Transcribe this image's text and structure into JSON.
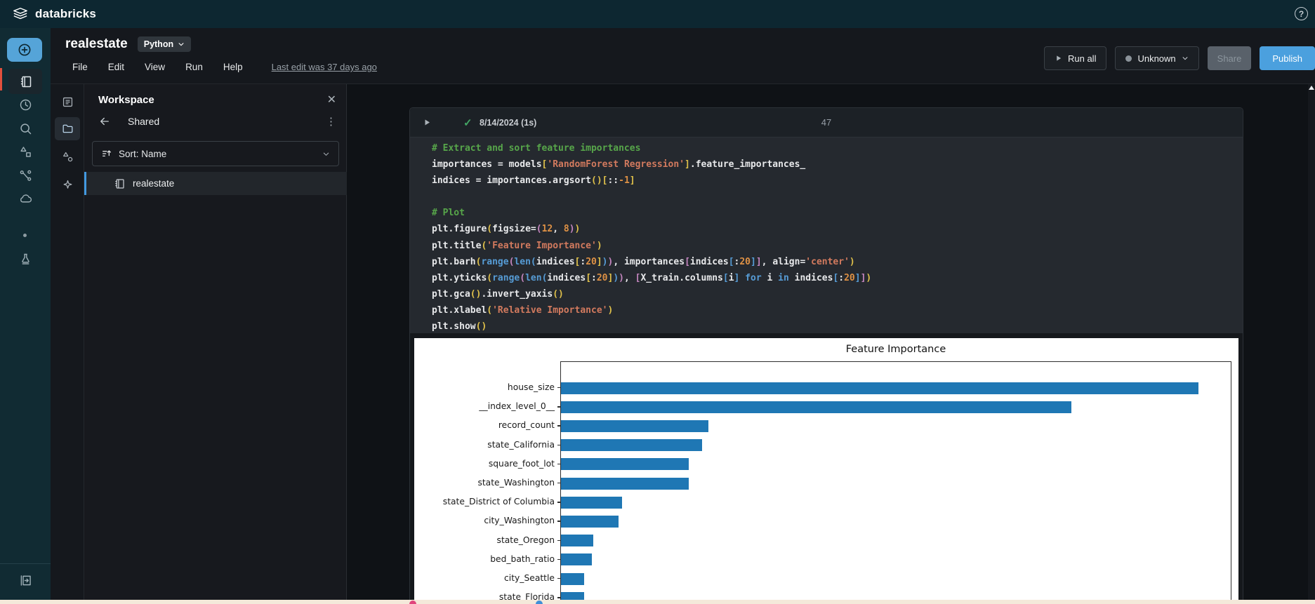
{
  "header": {
    "logo_text": "databricks",
    "help_label": "?"
  },
  "sidebar": {
    "icons": [
      "new-plus",
      "notebook",
      "recents-clock",
      "search",
      "catalog-shapes",
      "workflows",
      "compute-cloud",
      "dot-indicator",
      "experiments-flask",
      "collapse-panel"
    ]
  },
  "inner_strip": {
    "icons": [
      "table-of-contents",
      "folder",
      "schema-shapes",
      "assistant-sparkle"
    ]
  },
  "notebook": {
    "title": "realestate",
    "language": "Python",
    "menu": [
      "File",
      "Edit",
      "View",
      "Run",
      "Help"
    ],
    "last_edit": "Last edit was 37 days ago",
    "actions": {
      "run_all": "Run all",
      "status": "Unknown",
      "share": "Share",
      "publish": "Publish"
    }
  },
  "workspace_panel": {
    "title": "Workspace",
    "close_label": "✕",
    "breadcrumb": "Shared",
    "kebab": "⋮",
    "sort_label": "Sort: Name",
    "items": [
      {
        "label": "realestate",
        "selected": true
      }
    ]
  },
  "cell": {
    "run_date": "8/14/2024 (1s)",
    "execution_count": "47",
    "code_lines": [
      [
        [
          "c",
          "# Extract and sort feature importances"
        ]
      ],
      [
        [
          "p",
          "importances = models"
        ],
        [
          "b1",
          "["
        ],
        [
          "s",
          "'RandomForest Regression'"
        ],
        [
          "b1",
          "]"
        ],
        [
          "p",
          ".feature_importances_"
        ]
      ],
      [
        [
          "p",
          "indices = importances.argsort"
        ],
        [
          "b1",
          "("
        ],
        [
          "b1",
          ")"
        ],
        [
          "b1",
          "["
        ],
        [
          "p",
          "::"
        ],
        [
          "n",
          "-1"
        ],
        [
          "b1",
          "]"
        ]
      ],
      [],
      [
        [
          "c",
          "# Plot"
        ]
      ],
      [
        [
          "p",
          "plt.figure"
        ],
        [
          "b1",
          "("
        ],
        [
          "p",
          "figsize="
        ],
        [
          "b2",
          "("
        ],
        [
          "n",
          "12"
        ],
        [
          "p",
          ", "
        ],
        [
          "n",
          "8"
        ],
        [
          "b2",
          ")"
        ],
        [
          "b1",
          ")"
        ]
      ],
      [
        [
          "p",
          "plt.title"
        ],
        [
          "b1",
          "("
        ],
        [
          "s",
          "'Feature Importance'"
        ],
        [
          "b1",
          ")"
        ]
      ],
      [
        [
          "p",
          "plt.barh"
        ],
        [
          "b1",
          "("
        ],
        [
          "f",
          "range"
        ],
        [
          "b2",
          "("
        ],
        [
          "f",
          "len"
        ],
        [
          "b3",
          "("
        ],
        [
          "p",
          "indices"
        ],
        [
          "b1",
          "["
        ],
        [
          "p",
          ":"
        ],
        [
          "n",
          "20"
        ],
        [
          "b1",
          "]"
        ],
        [
          "b3",
          ")"
        ],
        [
          "b2",
          ")"
        ],
        [
          "p",
          ", importances"
        ],
        [
          "b2",
          "["
        ],
        [
          "p",
          "indices"
        ],
        [
          "b3",
          "["
        ],
        [
          "p",
          ":"
        ],
        [
          "n",
          "20"
        ],
        [
          "b3",
          "]"
        ],
        [
          "b2",
          "]"
        ],
        [
          "p",
          ", align="
        ],
        [
          "s",
          "'center'"
        ],
        [
          "b1",
          ")"
        ]
      ],
      [
        [
          "p",
          "plt.yticks"
        ],
        [
          "b1",
          "("
        ],
        [
          "f",
          "range"
        ],
        [
          "b2",
          "("
        ],
        [
          "f",
          "len"
        ],
        [
          "b3",
          "("
        ],
        [
          "p",
          "indices"
        ],
        [
          "b1",
          "["
        ],
        [
          "p",
          ":"
        ],
        [
          "n",
          "20"
        ],
        [
          "b1",
          "]"
        ],
        [
          "b3",
          ")"
        ],
        [
          "b2",
          ")"
        ],
        [
          "p",
          ", "
        ],
        [
          "b2",
          "["
        ],
        [
          "p",
          "X_train.columns"
        ],
        [
          "b3",
          "["
        ],
        [
          "p",
          "i"
        ],
        [
          "b3",
          "]"
        ],
        [
          "p",
          " "
        ],
        [
          "k",
          "for"
        ],
        [
          "p",
          " i "
        ],
        [
          "k",
          "in"
        ],
        [
          "p",
          " indices"
        ],
        [
          "b3",
          "["
        ],
        [
          "p",
          ":"
        ],
        [
          "n",
          "20"
        ],
        [
          "b3",
          "]"
        ],
        [
          "b2",
          "]"
        ],
        [
          "b1",
          ")"
        ]
      ],
      [
        [
          "p",
          "plt.gca"
        ],
        [
          "b1",
          "("
        ],
        [
          "b1",
          ")"
        ],
        [
          "p",
          ".invert_yaxis"
        ],
        [
          "b1",
          "("
        ],
        [
          "b1",
          ")"
        ]
      ],
      [
        [
          "p",
          "plt.xlabel"
        ],
        [
          "b1",
          "("
        ],
        [
          "s",
          "'Relative Importance'"
        ],
        [
          "b1",
          ")"
        ]
      ],
      [
        [
          "p",
          "plt.show"
        ],
        [
          "b1",
          "("
        ],
        [
          "b1",
          ")"
        ]
      ]
    ]
  },
  "chart_data": {
    "type": "bar",
    "orientation": "horizontal",
    "title": "Feature Importance",
    "xlabel": "Relative Importance",
    "inverted_yaxis": true,
    "categories": [
      "house_size",
      "__index_level_0__",
      "record_count",
      "state_California",
      "square_foot_lot",
      "state_Washington",
      "state_District of Columbia",
      "city_Washington",
      "state_Oregon",
      "bed_bath_ratio",
      "city_Seattle",
      "state_Florida"
    ],
    "values": [
      0.95,
      0.76,
      0.22,
      0.21,
      0.19,
      0.19,
      0.091,
      0.086,
      0.048,
      0.046,
      0.035,
      0.035
    ],
    "xlim": [
      0,
      1
    ],
    "bar_color": "#1f77b4",
    "grid": false,
    "legend": "none"
  },
  "colors": {
    "accent_blue": "#4299e0",
    "publish_blue": "#4ba0de",
    "bar_blue": "#1f77b4",
    "check_green": "#43a564",
    "header_teal": "#0d2731"
  }
}
